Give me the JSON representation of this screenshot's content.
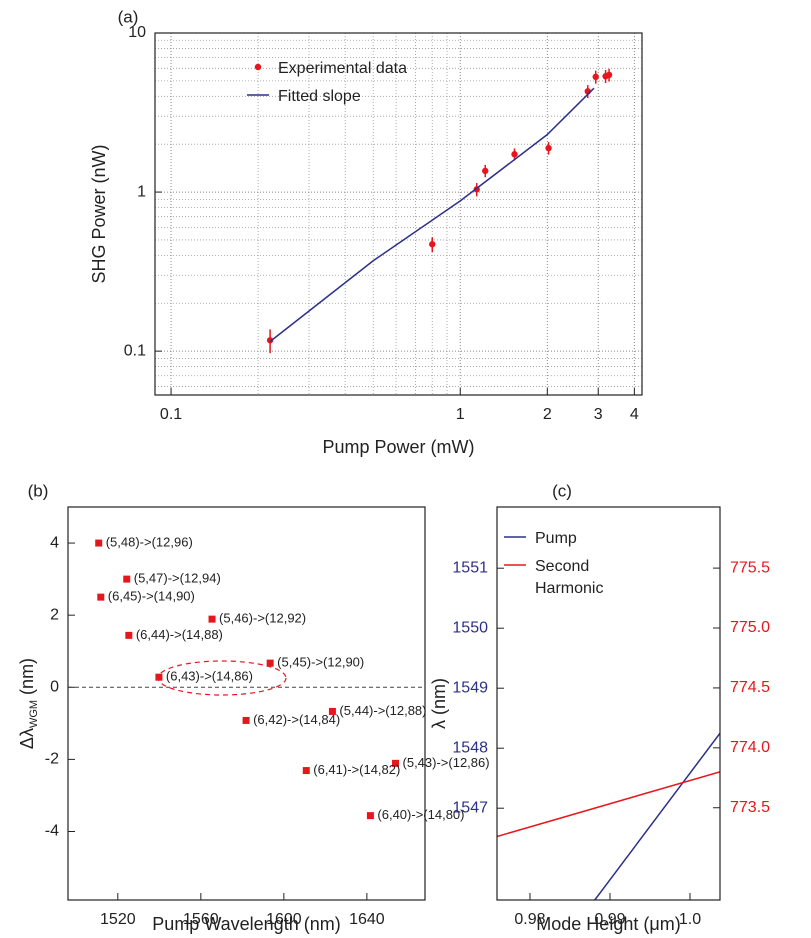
{
  "chart_data": [
    {
      "type": "scatter",
      "panel_label": "(a)",
      "xlabel": "Pump Power (mW)",
      "ylabel": "SHG Power (nW)",
      "xscale": "log",
      "yscale": "log",
      "xlim": [
        0.088,
        4.25
      ],
      "ylim": [
        0.053,
        10
      ],
      "xticks": [
        0.1,
        1,
        2,
        3,
        4
      ],
      "yticks": [
        0.1,
        1,
        10
      ],
      "x_minor_ticks": [
        0.2,
        0.3,
        0.4,
        0.5,
        0.6,
        0.7,
        0.8,
        0.9
      ],
      "y_minor_ticks": [
        0.06,
        0.07,
        0.08,
        0.09,
        0.2,
        0.3,
        0.4,
        0.5,
        0.6,
        0.7,
        0.8,
        0.9,
        2,
        3,
        4,
        5,
        6,
        7,
        8,
        9
      ],
      "grid": true,
      "legend": "upper left",
      "series": [
        {
          "name": "Experimental data",
          "type": "scatter",
          "color": "#e8161c",
          "x": [
            0.22,
            0.8,
            1.14,
            1.22,
            1.54,
            2.02,
            2.76,
            2.94,
            3.18,
            3.27
          ],
          "values": [
            0.117,
            0.47,
            1.04,
            1.36,
            1.73,
            1.89,
            4.3,
            5.3,
            5.35,
            5.45
          ],
          "errors": [
            0.02,
            0.05,
            0.1,
            0.12,
            0.15,
            0.17,
            0.4,
            0.5,
            0.5,
            0.5
          ]
        },
        {
          "name": "Fitted slope",
          "type": "line",
          "color": "#2d3089",
          "x": [
            0.22,
            0.5,
            1,
            2,
            2.9
          ],
          "values": [
            0.115,
            0.37,
            0.88,
            2.3,
            4.5
          ]
        }
      ]
    },
    {
      "type": "scatter",
      "panel_label": "(b)",
      "xlabel": "Pump Wavelength (nm)",
      "ylabel": [
        "Δλ",
        "WGM",
        "(nm)"
      ],
      "xlim": [
        1496,
        1668
      ],
      "ylim": [
        -5.9,
        5
      ],
      "xticks": [
        1520,
        1560,
        1600,
        1640
      ],
      "yticks": [
        -4,
        -2,
        0,
        2,
        4
      ],
      "reference_line": 0,
      "series": [
        {
          "type": "scatter",
          "marker": "square",
          "color": "#e8161c",
          "x": [
            1510.8,
            1524.3,
            1511.8,
            1565.4,
            1525.3,
            1593.4,
            1539.8,
            1623.4,
            1581.8,
            1653.8,
            1610.8,
            1641.7
          ],
          "values": [
            4.0,
            3.0,
            2.5,
            1.89,
            1.44,
            0.67,
            0.28,
            -0.67,
            -0.92,
            -2.11,
            -2.31,
            -3.56
          ],
          "point_labels": [
            "(5,48)->(12,96)",
            "(5,47)->(12,94)",
            "(6,45)->(14,90)",
            "(5,46)->(12,92)",
            "(6,44)->(14,88)",
            "(5,45)->(12,90)",
            "(6,43)->(14,86)",
            "(5,44)->(12,88)",
            "(6,42)->(14,84)",
            "(5,43)->(12,86)",
            "(6,41)->(14,82)",
            "(6,40)->(14,80)"
          ]
        }
      ]
    },
    {
      "type": "line",
      "panel_label": "(c)",
      "xlabel": "Mode Height (μm)",
      "ylabel": "λ (nm)",
      "xlim": [
        0.97588,
        1.00375
      ],
      "ylim": [
        1545.47,
        1552.02
      ],
      "y2lim": [
        772.73,
        776.01
      ],
      "xticks": [
        0.98,
        0.99,
        {
          "value": 1.0,
          "label": "1.0"
        }
      ],
      "yticks": [
        1547,
        1548,
        1549,
        1550,
        1551
      ],
      "y2ticks": [
        773.5,
        {
          "value": 774.0,
          "label": "774.0"
        },
        774.5,
        {
          "value": 775.0,
          "label": "775.0"
        },
        775.5
      ],
      "legend": "upper left",
      "series": [
        {
          "name": "Pump",
          "color": "#2d3089",
          "axis": "y",
          "x": [
            0.9881,
            1.00375
          ],
          "values": [
            1545.47,
            1548.25
          ]
        },
        {
          "name": "Second Harmonic",
          "color": "#e8161c",
          "axis": "y2",
          "x": [
            0.97588,
            1.00375
          ],
          "values": [
            773.26,
            773.8
          ]
        }
      ]
    }
  ]
}
